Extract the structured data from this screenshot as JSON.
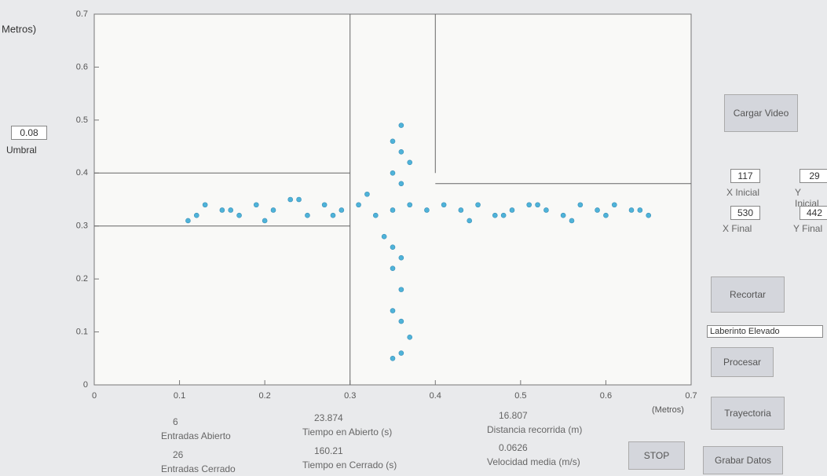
{
  "chart_data": {
    "type": "scatter",
    "y_label": "Metros)",
    "x_label": "(Metros)",
    "xlim": [
      0,
      0.7
    ],
    "ylim": [
      0,
      0.7
    ],
    "xticks": [
      0,
      0.1,
      0.2,
      0.3,
      0.4,
      0.5,
      0.6,
      0.7
    ],
    "yticks": [
      0,
      0.1,
      0.2,
      0.3,
      0.4,
      0.5,
      0.6,
      0.7
    ],
    "color": "#4fb3d9",
    "x": [
      0.11,
      0.13,
      0.15,
      0.17,
      0.19,
      0.21,
      0.23,
      0.25,
      0.27,
      0.29,
      0.31,
      0.33,
      0.35,
      0.37,
      0.39,
      0.41,
      0.43,
      0.45,
      0.47,
      0.49,
      0.51,
      0.53,
      0.55,
      0.57,
      0.59,
      0.61,
      0.63,
      0.65,
      0.12,
      0.16,
      0.2,
      0.24,
      0.28,
      0.32,
      0.44,
      0.48,
      0.52,
      0.56,
      0.6,
      0.64,
      0.36,
      0.35,
      0.36,
      0.37,
      0.35,
      0.36,
      0.34,
      0.35,
      0.36,
      0.35,
      0.36,
      0.35,
      0.36,
      0.37,
      0.36,
      0.35
    ],
    "y": [
      0.31,
      0.34,
      0.33,
      0.32,
      0.34,
      0.33,
      0.35,
      0.32,
      0.34,
      0.33,
      0.34,
      0.32,
      0.33,
      0.34,
      0.33,
      0.34,
      0.33,
      0.34,
      0.32,
      0.33,
      0.34,
      0.33,
      0.32,
      0.34,
      0.33,
      0.34,
      0.33,
      0.32,
      0.32,
      0.33,
      0.31,
      0.35,
      0.32,
      0.36,
      0.31,
      0.32,
      0.34,
      0.31,
      0.32,
      0.33,
      0.49,
      0.46,
      0.44,
      0.42,
      0.4,
      0.38,
      0.28,
      0.26,
      0.24,
      0.22,
      0.18,
      0.14,
      0.12,
      0.09,
      0.06,
      0.05
    ],
    "segments": [
      {
        "x": [
          0,
          0.3
        ],
        "y": [
          0.4,
          0.4
        ]
      },
      {
        "x": [
          0,
          0.3
        ],
        "y": [
          0.3,
          0.3
        ]
      },
      {
        "x": [
          0.3,
          0.3
        ],
        "y": [
          0,
          0.7
        ]
      },
      {
        "x": [
          0.4,
          0.4
        ],
        "y": [
          0.7,
          0.4
        ]
      },
      {
        "x": [
          0.4,
          0.7
        ],
        "y": [
          0.38,
          0.38
        ]
      }
    ]
  },
  "controls": {
    "umbral": {
      "value": "0.08",
      "label": "Umbral"
    },
    "cargar_video": "Cargar Video",
    "x_inicial": {
      "value": "117",
      "label": "X Inicial"
    },
    "y_inicial": {
      "value": "29",
      "label": "Y Inicial"
    },
    "x_final": {
      "value": "530",
      "label": "X Final"
    },
    "y_final": {
      "value": "442",
      "label": "Y Final"
    },
    "recortar": "Recortar",
    "laberinto": "Laberinto Elevado",
    "procesar": "Procesar",
    "trayectoria": "Trayectoria",
    "stop": "STOP",
    "grabar": "Grabar Datos",
    "stats": [
      {
        "value": "6",
        "label": "Entradas Abierto"
      },
      {
        "value": "26",
        "label": "Entradas Cerrado"
      },
      {
        "value": "23.874",
        "label": "Tiempo en Abierto (s)"
      },
      {
        "value": "160.21",
        "label": "Tiempo en Cerrado (s)"
      },
      {
        "value": "16.807",
        "label": "Distancia recorrida (m)"
      },
      {
        "value": "0.0626",
        "label": "Velocidad media (m/s)"
      }
    ]
  }
}
